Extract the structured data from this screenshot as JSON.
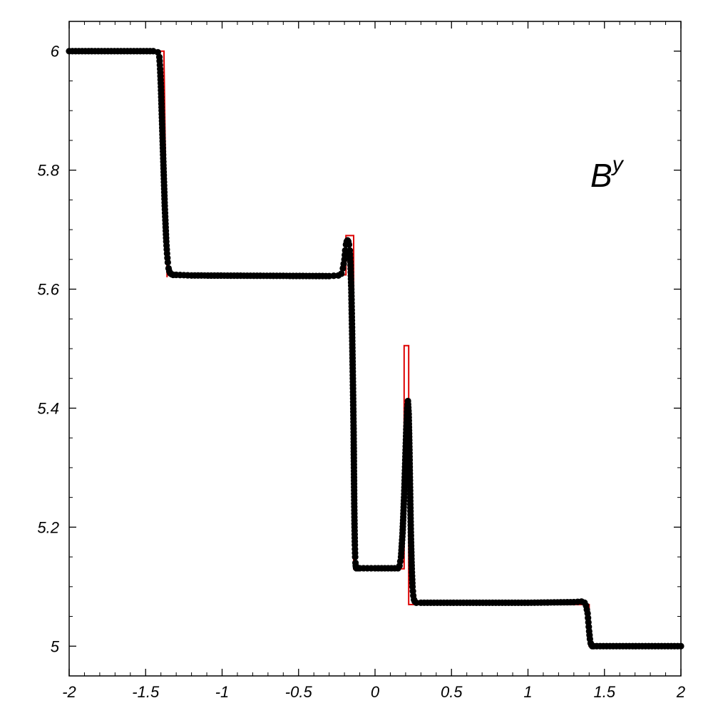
{
  "chart_data": {
    "type": "line",
    "title": "",
    "xlabel": "",
    "ylabel": "",
    "xlim": [
      -2,
      2
    ],
    "ylim": [
      4.95,
      6.05
    ],
    "x_ticks": [
      -2,
      -1.5,
      -1,
      -0.5,
      0,
      0.5,
      1,
      1.5,
      2
    ],
    "x_tick_labels": [
      "-2",
      "-1.5",
      "-1",
      "-0.5",
      "0",
      "0.5",
      "1",
      "1.5",
      "2"
    ],
    "y_ticks": [
      5,
      5.2,
      5.4,
      5.6,
      5.8,
      6
    ],
    "y_tick_labels": [
      "5",
      "5.2",
      "5.4",
      "5.6",
      "5.8",
      "6"
    ],
    "annotation": {
      "base": "B",
      "superscript": "y"
    },
    "grid": false,
    "legend": "none",
    "series": [
      {
        "style": "line",
        "color": "#dd0000",
        "x": [
          -2.0,
          -1.38,
          -1.38,
          -1.36,
          -1.36,
          -0.19,
          -0.19,
          -0.14,
          -0.14,
          0.19,
          0.19,
          0.22,
          0.22,
          1.4,
          1.4,
          2.0
        ],
        "y": [
          6.0,
          6.0,
          5.99,
          5.62,
          5.624,
          5.624,
          5.69,
          5.69,
          5.13,
          5.13,
          5.505,
          5.505,
          5.07,
          5.07,
          5.0,
          5.0
        ]
      },
      {
        "style": "points",
        "color": "#000000",
        "x": [
          -2.0,
          -1.45,
          -1.42,
          -1.41,
          -1.405,
          -1.4,
          -1.395,
          -1.39,
          -1.385,
          -1.38,
          -1.375,
          -1.37,
          -1.365,
          -1.36,
          -1.355,
          -1.35,
          -1.345,
          -1.34,
          -1.335,
          -1.33,
          -1.32,
          -1.3,
          -1.2,
          -0.3,
          -0.24,
          -0.22,
          -0.21,
          -0.2,
          -0.195,
          -0.19,
          -0.185,
          -0.18,
          -0.175,
          -0.17,
          -0.165,
          -0.16,
          -0.155,
          -0.15,
          -0.145,
          -0.14,
          -0.138,
          -0.136,
          -0.134,
          -0.132,
          -0.13,
          -0.128,
          -0.126,
          -0.124,
          -0.122,
          -0.12,
          -0.115,
          -0.11,
          -0.1,
          0.0,
          0.15,
          0.16,
          0.17,
          0.18,
          0.19,
          0.195,
          0.2,
          0.205,
          0.21,
          0.215,
          0.22,
          0.225,
          0.23,
          0.235,
          0.24,
          0.245,
          0.25,
          0.255,
          0.26,
          0.27,
          0.3,
          0.6,
          1.0,
          1.3,
          1.35,
          1.37,
          1.38,
          1.39,
          1.395,
          1.4,
          1.405,
          1.41,
          1.415,
          1.42,
          1.43,
          1.45,
          1.6,
          2.0
        ],
        "y": [
          6.0,
          6.0,
          5.998,
          5.99,
          5.97,
          5.94,
          5.9,
          5.86,
          5.82,
          5.78,
          5.74,
          5.71,
          5.68,
          5.66,
          5.645,
          5.635,
          5.63,
          5.627,
          5.626,
          5.625,
          5.624,
          5.624,
          5.623,
          5.622,
          5.623,
          5.626,
          5.635,
          5.65,
          5.665,
          5.675,
          5.68,
          5.682,
          5.68,
          5.675,
          5.665,
          5.64,
          5.6,
          5.53,
          5.45,
          5.36,
          5.3,
          5.24,
          5.2,
          5.17,
          5.15,
          5.14,
          5.135,
          5.132,
          5.131,
          5.131,
          5.131,
          5.131,
          5.131,
          5.131,
          5.131,
          5.135,
          5.15,
          5.19,
          5.25,
          5.29,
          5.33,
          5.37,
          5.4,
          5.412,
          5.39,
          5.33,
          5.25,
          5.18,
          5.13,
          5.1,
          5.085,
          5.078,
          5.075,
          5.073,
          5.073,
          5.073,
          5.073,
          5.074,
          5.075,
          5.073,
          5.068,
          5.055,
          5.04,
          5.025,
          5.012,
          5.005,
          5.002,
          5.0,
          5.0,
          5.0,
          5.0,
          5.0
        ]
      }
    ]
  }
}
